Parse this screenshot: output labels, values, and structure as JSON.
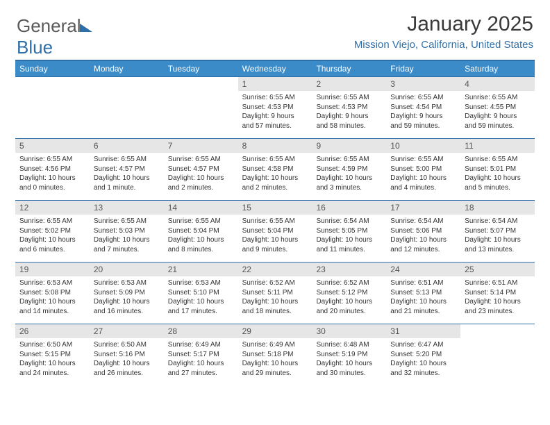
{
  "brand": {
    "name_a": "General",
    "name_b": "Blue"
  },
  "title": {
    "month": "January 2025",
    "location": "Mission Viejo, California, United States"
  },
  "colors": {
    "accent": "#2f6fa7",
    "header_bg": "#3b8bc9",
    "daynum_bg": "#e6e6e6",
    "text": "#333333"
  },
  "day_headers": [
    "Sunday",
    "Monday",
    "Tuesday",
    "Wednesday",
    "Thursday",
    "Friday",
    "Saturday"
  ],
  "weeks": [
    [
      {
        "blank": true
      },
      {
        "blank": true
      },
      {
        "blank": true
      },
      {
        "n": "1",
        "sr": "Sunrise: 6:55 AM",
        "ss": "Sunset: 4:53 PM",
        "d1": "Daylight: 9 hours",
        "d2": "and 57 minutes."
      },
      {
        "n": "2",
        "sr": "Sunrise: 6:55 AM",
        "ss": "Sunset: 4:53 PM",
        "d1": "Daylight: 9 hours",
        "d2": "and 58 minutes."
      },
      {
        "n": "3",
        "sr": "Sunrise: 6:55 AM",
        "ss": "Sunset: 4:54 PM",
        "d1": "Daylight: 9 hours",
        "d2": "and 59 minutes."
      },
      {
        "n": "4",
        "sr": "Sunrise: 6:55 AM",
        "ss": "Sunset: 4:55 PM",
        "d1": "Daylight: 9 hours",
        "d2": "and 59 minutes."
      }
    ],
    [
      {
        "n": "5",
        "sr": "Sunrise: 6:55 AM",
        "ss": "Sunset: 4:56 PM",
        "d1": "Daylight: 10 hours",
        "d2": "and 0 minutes."
      },
      {
        "n": "6",
        "sr": "Sunrise: 6:55 AM",
        "ss": "Sunset: 4:57 PM",
        "d1": "Daylight: 10 hours",
        "d2": "and 1 minute."
      },
      {
        "n": "7",
        "sr": "Sunrise: 6:55 AM",
        "ss": "Sunset: 4:57 PM",
        "d1": "Daylight: 10 hours",
        "d2": "and 2 minutes."
      },
      {
        "n": "8",
        "sr": "Sunrise: 6:55 AM",
        "ss": "Sunset: 4:58 PM",
        "d1": "Daylight: 10 hours",
        "d2": "and 2 minutes."
      },
      {
        "n": "9",
        "sr": "Sunrise: 6:55 AM",
        "ss": "Sunset: 4:59 PM",
        "d1": "Daylight: 10 hours",
        "d2": "and 3 minutes."
      },
      {
        "n": "10",
        "sr": "Sunrise: 6:55 AM",
        "ss": "Sunset: 5:00 PM",
        "d1": "Daylight: 10 hours",
        "d2": "and 4 minutes."
      },
      {
        "n": "11",
        "sr": "Sunrise: 6:55 AM",
        "ss": "Sunset: 5:01 PM",
        "d1": "Daylight: 10 hours",
        "d2": "and 5 minutes."
      }
    ],
    [
      {
        "n": "12",
        "sr": "Sunrise: 6:55 AM",
        "ss": "Sunset: 5:02 PM",
        "d1": "Daylight: 10 hours",
        "d2": "and 6 minutes."
      },
      {
        "n": "13",
        "sr": "Sunrise: 6:55 AM",
        "ss": "Sunset: 5:03 PM",
        "d1": "Daylight: 10 hours",
        "d2": "and 7 minutes."
      },
      {
        "n": "14",
        "sr": "Sunrise: 6:55 AM",
        "ss": "Sunset: 5:04 PM",
        "d1": "Daylight: 10 hours",
        "d2": "and 8 minutes."
      },
      {
        "n": "15",
        "sr": "Sunrise: 6:55 AM",
        "ss": "Sunset: 5:04 PM",
        "d1": "Daylight: 10 hours",
        "d2": "and 9 minutes."
      },
      {
        "n": "16",
        "sr": "Sunrise: 6:54 AM",
        "ss": "Sunset: 5:05 PM",
        "d1": "Daylight: 10 hours",
        "d2": "and 11 minutes."
      },
      {
        "n": "17",
        "sr": "Sunrise: 6:54 AM",
        "ss": "Sunset: 5:06 PM",
        "d1": "Daylight: 10 hours",
        "d2": "and 12 minutes."
      },
      {
        "n": "18",
        "sr": "Sunrise: 6:54 AM",
        "ss": "Sunset: 5:07 PM",
        "d1": "Daylight: 10 hours",
        "d2": "and 13 minutes."
      }
    ],
    [
      {
        "n": "19",
        "sr": "Sunrise: 6:53 AM",
        "ss": "Sunset: 5:08 PM",
        "d1": "Daylight: 10 hours",
        "d2": "and 14 minutes."
      },
      {
        "n": "20",
        "sr": "Sunrise: 6:53 AM",
        "ss": "Sunset: 5:09 PM",
        "d1": "Daylight: 10 hours",
        "d2": "and 16 minutes."
      },
      {
        "n": "21",
        "sr": "Sunrise: 6:53 AM",
        "ss": "Sunset: 5:10 PM",
        "d1": "Daylight: 10 hours",
        "d2": "and 17 minutes."
      },
      {
        "n": "22",
        "sr": "Sunrise: 6:52 AM",
        "ss": "Sunset: 5:11 PM",
        "d1": "Daylight: 10 hours",
        "d2": "and 18 minutes."
      },
      {
        "n": "23",
        "sr": "Sunrise: 6:52 AM",
        "ss": "Sunset: 5:12 PM",
        "d1": "Daylight: 10 hours",
        "d2": "and 20 minutes."
      },
      {
        "n": "24",
        "sr": "Sunrise: 6:51 AM",
        "ss": "Sunset: 5:13 PM",
        "d1": "Daylight: 10 hours",
        "d2": "and 21 minutes."
      },
      {
        "n": "25",
        "sr": "Sunrise: 6:51 AM",
        "ss": "Sunset: 5:14 PM",
        "d1": "Daylight: 10 hours",
        "d2": "and 23 minutes."
      }
    ],
    [
      {
        "n": "26",
        "sr": "Sunrise: 6:50 AM",
        "ss": "Sunset: 5:15 PM",
        "d1": "Daylight: 10 hours",
        "d2": "and 24 minutes."
      },
      {
        "n": "27",
        "sr": "Sunrise: 6:50 AM",
        "ss": "Sunset: 5:16 PM",
        "d1": "Daylight: 10 hours",
        "d2": "and 26 minutes."
      },
      {
        "n": "28",
        "sr": "Sunrise: 6:49 AM",
        "ss": "Sunset: 5:17 PM",
        "d1": "Daylight: 10 hours",
        "d2": "and 27 minutes."
      },
      {
        "n": "29",
        "sr": "Sunrise: 6:49 AM",
        "ss": "Sunset: 5:18 PM",
        "d1": "Daylight: 10 hours",
        "d2": "and 29 minutes."
      },
      {
        "n": "30",
        "sr": "Sunrise: 6:48 AM",
        "ss": "Sunset: 5:19 PM",
        "d1": "Daylight: 10 hours",
        "d2": "and 30 minutes."
      },
      {
        "n": "31",
        "sr": "Sunrise: 6:47 AM",
        "ss": "Sunset: 5:20 PM",
        "d1": "Daylight: 10 hours",
        "d2": "and 32 minutes."
      },
      {
        "blank": true
      }
    ]
  ]
}
